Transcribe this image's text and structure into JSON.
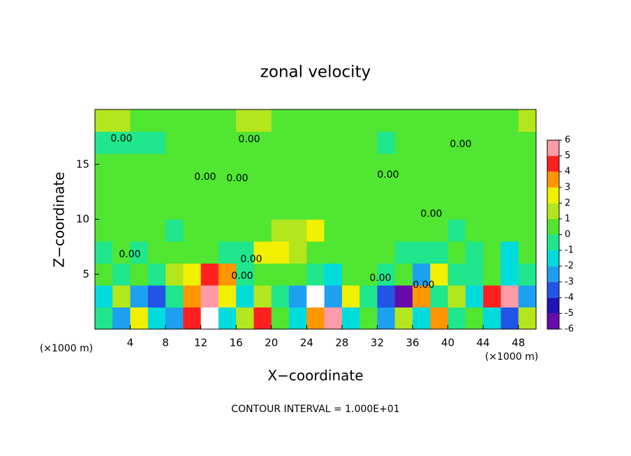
{
  "chart_data": {
    "type": "heatmap",
    "title": "zonal velocity",
    "xlabel": "X−coordinate",
    "ylabel": "Z−coordinate",
    "x_unit_label": "(×1000 m)",
    "y_unit_label": "(×1000 m)",
    "note": "CONTOUR INTERVAL = 1.000E+01",
    "xlim": [
      0,
      50
    ],
    "ylim": [
      0,
      20
    ],
    "xticks": [
      4,
      8,
      12,
      16,
      20,
      24,
      28,
      32,
      36,
      40,
      44,
      48
    ],
    "yticks": [
      5,
      10,
      15
    ],
    "clim": [
      -6,
      6
    ],
    "colorbar_ticks": [
      -6,
      -5,
      -4,
      -3,
      -2,
      -1,
      0,
      1,
      2,
      3,
      4,
      5,
      6
    ],
    "colors": [
      "#6a0aa8",
      "#1c14b4",
      "#2255e6",
      "#1ea0f0",
      "#00dcdc",
      "#20e68c",
      "#50e632",
      "#b4e61e",
      "#f0f000",
      "#ff9600",
      "#ff2020",
      "#ff9aa8"
    ],
    "over_color": "#ffffff",
    "contour_labels": [
      "0.00",
      "0.00",
      "0.00",
      "0.00",
      "0.00",
      "0.00",
      "0.00",
      "0.00",
      "0.00",
      "0.00",
      "0.00",
      "0.00"
    ],
    "x": [
      1,
      3,
      5,
      7,
      9,
      11,
      13,
      15,
      17,
      19,
      21,
      23,
      25,
      27,
      29,
      31,
      33,
      35,
      37,
      39,
      41,
      43,
      45,
      47,
      49
    ],
    "y": [
      1,
      3,
      5,
      7,
      9,
      11,
      13,
      15,
      17,
      19
    ],
    "z": [
      [
        -1,
        -3,
        2,
        -2,
        -3,
        4,
        7,
        -2,
        1,
        4,
        0,
        -2,
        3,
        5,
        -2,
        0,
        -3,
        1,
        -2,
        3,
        -1,
        0,
        -2,
        -4,
        1
      ],
      [
        -2,
        1,
        -3,
        -4,
        -1,
        3,
        6,
        2,
        -2,
        1,
        -1,
        -3,
        7,
        -3,
        2,
        -1,
        -4,
        -6,
        3,
        -1,
        1,
        -2,
        4,
        6,
        -3
      ],
      [
        0,
        -1,
        0,
        -0.5,
        1,
        2,
        4,
        3,
        -1,
        0.5,
        0,
        0,
        -1,
        -2,
        0,
        0,
        -1,
        0,
        -3,
        2,
        -1,
        -0.5,
        0,
        -2,
        -1
      ],
      [
        -0.5,
        0,
        -0.5,
        0,
        0,
        0,
        0.5,
        -1,
        -1,
        2,
        2.5,
        1,
        0,
        0,
        0,
        0,
        0,
        -0.5,
        -1,
        -0.5,
        0,
        -0.5,
        0,
        -2,
        0
      ],
      [
        0,
        0,
        0,
        0,
        -0.5,
        0,
        0,
        0,
        0,
        0.5,
        1,
        1.5,
        2,
        0.5,
        0,
        0,
        0,
        0,
        0,
        0,
        -0.5,
        0,
        0,
        0,
        0
      ],
      [
        0,
        0,
        0,
        0,
        0,
        0,
        0,
        0,
        0,
        0,
        0,
        0,
        0,
        0.5,
        0.5,
        0.5,
        0,
        0,
        0,
        0,
        0,
        0,
        0,
        0,
        0
      ],
      [
        0,
        0,
        0,
        0,
        0,
        0,
        0,
        0,
        0,
        0,
        0,
        0,
        0,
        0,
        0.5,
        0.5,
        0,
        0,
        0,
        0,
        0,
        0,
        0,
        0,
        0
      ],
      [
        0,
        0,
        0,
        0,
        0,
        0,
        0,
        0.5,
        0,
        0,
        0,
        0.5,
        0.5,
        0.5,
        0.5,
        0,
        0,
        0,
        0,
        0,
        0,
        0,
        0,
        0,
        0
      ],
      [
        -1,
        -1,
        -0.5,
        -0.5,
        0,
        0,
        0,
        0,
        0,
        0,
        0.5,
        0,
        0,
        0,
        0,
        0,
        -0.5,
        0,
        0,
        0,
        0,
        0,
        0,
        0,
        0
      ],
      [
        1,
        1,
        0.5,
        0.5,
        0.5,
        0.5,
        0.5,
        0.5,
        1,
        1,
        0.5,
        0.5,
        0.5,
        0.5,
        0.5,
        0.5,
        0.5,
        0.5,
        0.5,
        0.5,
        0.5,
        0.5,
        0.5,
        0.5,
        1
      ]
    ]
  }
}
